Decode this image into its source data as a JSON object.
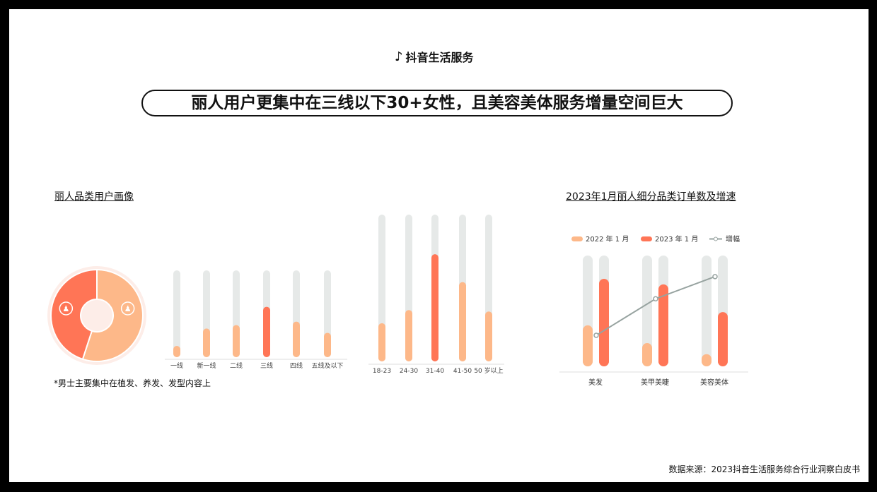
{
  "brand": "抖音生活服务",
  "title": "丽人用户更集中在三线以下30+女性，且美容美体服务增量空间巨大",
  "left_section_title": "丽人品类用户画像",
  "right_section_title": "2023年1月丽人细分品类订单数及增速",
  "note": "*男士主要集中在植发、养发、发型内容上",
  "source": "数据来源：2023抖音生活服务综合行业洞察白皮书",
  "colors": {
    "peach": "#FDB889",
    "red": "#FF7556",
    "track": "#E6E9E8",
    "line": "#97A3A0"
  },
  "chart_data": [
    {
      "type": "pie",
      "donut": true,
      "slices": [
        {
          "icon": "female-icon",
          "value": 55,
          "color": "#FDB889"
        },
        {
          "icon": "male-icon",
          "value": 45,
          "color": "#FF7556"
        }
      ]
    },
    {
      "type": "bar",
      "categories": [
        "一线",
        "新一线",
        "二线",
        "三线",
        "四线",
        "五线及以下"
      ],
      "values": [
        13,
        33,
        37,
        58,
        41,
        28
      ],
      "highlight": "三线",
      "ylim": [
        0,
        100
      ]
    },
    {
      "type": "bar",
      "categories": [
        "18-23",
        "24-30",
        "31-40",
        "41-50",
        "50 岁以上"
      ],
      "values": [
        26,
        35,
        73,
        54,
        34
      ],
      "highlight": "31-40",
      "ylim": [
        0,
        100
      ]
    },
    {
      "type": "bar",
      "categories": [
        "美发",
        "美甲美睫",
        "美容美体"
      ],
      "series": [
        {
          "name": "2022 年 1 月",
          "values": [
            37,
            21,
            11
          ]
        },
        {
          "name": "2023 年 1 月",
          "values": [
            79,
            74,
            49
          ]
        }
      ],
      "line": {
        "name": "增幅",
        "values": [
          28,
          61,
          81
        ]
      },
      "ylim": [
        0,
        100
      ],
      "legend": "top"
    }
  ]
}
